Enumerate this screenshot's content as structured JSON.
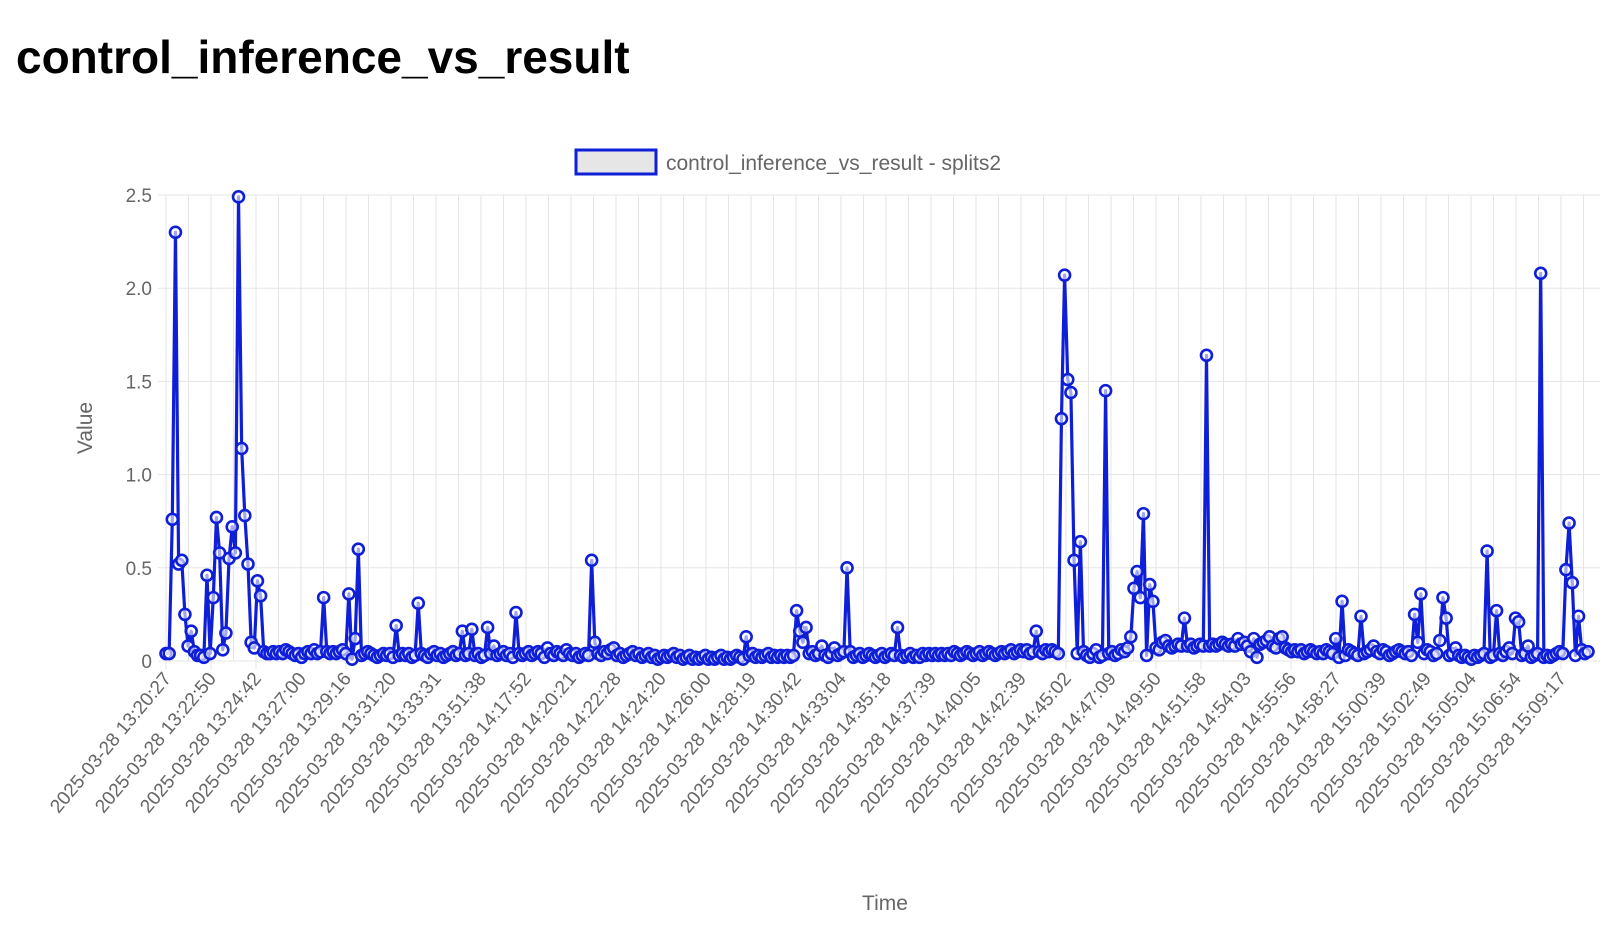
{
  "page": {
    "title": "control_inference_vs_result"
  },
  "colors": {
    "series": "#0f1fd8",
    "legend_fill": "#e6e6e6",
    "grid": "#e5e5e5",
    "text": "#666666"
  },
  "chart_data": {
    "type": "line",
    "xlabel": "Time",
    "ylabel": "Value",
    "ylim": [
      0,
      2.5
    ],
    "yticks": [
      "0",
      "0.5",
      "1.0",
      "1.5",
      "2.0",
      "2.5"
    ],
    "xticks": [
      "2025-03-28 13:20:27",
      "2025-03-28 13:22:50",
      "2025-03-28 13:24:42",
      "2025-03-28 13:27:00",
      "2025-03-28 13:29:16",
      "2025-03-28 13:31:20",
      "2025-03-28 13:33:31",
      "2025-03-28 13:51:38",
      "2025-03-28 14:17:52",
      "2025-03-28 14:20:21",
      "2025-03-28 14:22:28",
      "2025-03-28 14:24:20",
      "2025-03-28 14:26:00",
      "2025-03-28 14:28:19",
      "2025-03-28 14:30:42",
      "2025-03-28 14:33:04",
      "2025-03-28 14:35:18",
      "2025-03-28 14:37:39",
      "2025-03-28 14:40:05",
      "2025-03-28 14:42:39",
      "2025-03-28 14:45:02",
      "2025-03-28 14:47:09",
      "2025-03-28 14:49:50",
      "2025-03-28 14:51:58",
      "2025-03-28 14:54:03",
      "2025-03-28 14:55:56",
      "2025-03-28 14:58:27",
      "2025-03-28 15:00:39",
      "2025-03-28 15:02:49",
      "2025-03-28 15:05:04",
      "2025-03-28 15:06:54",
      "2025-03-28 15:09:17"
    ],
    "grid": true,
    "legend_position": "top",
    "series": [
      {
        "name": "control_inference_vs_result - splits2",
        "values": [
          0.04,
          0.04,
          0.76,
          2.3,
          0.52,
          0.54,
          0.25,
          0.08,
          0.16,
          0.05,
          0.03,
          0.03,
          0.02,
          0.46,
          0.04,
          0.34,
          0.77,
          0.58,
          0.06,
          0.15,
          0.55,
          0.72,
          0.58,
          2.49,
          1.14,
          0.78,
          0.52,
          0.1,
          0.07,
          0.43,
          0.35,
          0.05,
          0.04,
          0.04,
          0.05,
          0.04,
          0.05,
          0.04,
          0.06,
          0.05,
          0.04,
          0.03,
          0.04,
          0.02,
          0.04,
          0.05,
          0.04,
          0.06,
          0.04,
          0.05,
          0.34,
          0.05,
          0.04,
          0.05,
          0.04,
          0.05,
          0.06,
          0.04,
          0.36,
          0.01,
          0.12,
          0.6,
          0.03,
          0.04,
          0.05,
          0.04,
          0.03,
          0.02,
          0.03,
          0.04,
          0.03,
          0.04,
          0.02,
          0.19,
          0.03,
          0.04,
          0.03,
          0.04,
          0.02,
          0.03,
          0.31,
          0.04,
          0.03,
          0.02,
          0.04,
          0.05,
          0.03,
          0.04,
          0.02,
          0.03,
          0.04,
          0.05,
          0.03,
          0.04,
          0.16,
          0.03,
          0.04,
          0.17,
          0.03,
          0.04,
          0.02,
          0.03,
          0.18,
          0.04,
          0.08,
          0.03,
          0.04,
          0.05,
          0.03,
          0.04,
          0.02,
          0.26,
          0.04,
          0.03,
          0.04,
          0.05,
          0.03,
          0.04,
          0.05,
          0.04,
          0.02,
          0.07,
          0.04,
          0.03,
          0.05,
          0.04,
          0.03,
          0.06,
          0.04,
          0.03,
          0.04,
          0.02,
          0.03,
          0.04,
          0.03,
          0.54,
          0.1,
          0.04,
          0.03,
          0.05,
          0.04,
          0.06,
          0.07,
          0.03,
          0.04,
          0.02,
          0.03,
          0.04,
          0.05,
          0.03,
          0.04,
          0.02,
          0.03,
          0.04,
          0.02,
          0.03,
          0.01,
          0.02,
          0.03,
          0.02,
          0.03,
          0.04,
          0.02,
          0.03,
          0.01,
          0.02,
          0.03,
          0.01,
          0.02,
          0.01,
          0.02,
          0.03,
          0.01,
          0.02,
          0.01,
          0.02,
          0.03,
          0.01,
          0.02,
          0.01,
          0.02,
          0.03,
          0.02,
          0.01,
          0.13,
          0.03,
          0.04,
          0.02,
          0.03,
          0.02,
          0.03,
          0.04,
          0.02,
          0.03,
          0.02,
          0.03,
          0.02,
          0.03,
          0.02,
          0.03,
          0.27,
          0.16,
          0.1,
          0.18,
          0.04,
          0.05,
          0.03,
          0.04,
          0.08,
          0.03,
          0.02,
          0.04,
          0.07,
          0.03,
          0.04,
          0.05,
          0.5,
          0.05,
          0.02,
          0.03,
          0.04,
          0.02,
          0.03,
          0.04,
          0.03,
          0.02,
          0.03,
          0.04,
          0.02,
          0.03,
          0.04,
          0.03,
          0.18,
          0.03,
          0.02,
          0.03,
          0.04,
          0.02,
          0.03,
          0.02,
          0.04,
          0.03,
          0.04,
          0.03,
          0.04,
          0.03,
          0.04,
          0.03,
          0.04,
          0.03,
          0.05,
          0.04,
          0.03,
          0.04,
          0.05,
          0.04,
          0.03,
          0.04,
          0.05,
          0.03,
          0.04,
          0.05,
          0.04,
          0.03,
          0.04,
          0.05,
          0.04,
          0.05,
          0.06,
          0.04,
          0.05,
          0.06,
          0.05,
          0.06,
          0.04,
          0.05,
          0.16,
          0.05,
          0.04,
          0.06,
          0.05,
          0.06,
          0.05,
          0.04,
          1.3,
          2.07,
          1.51,
          1.44,
          0.54,
          0.04,
          0.64,
          0.05,
          0.03,
          0.02,
          0.04,
          0.06,
          0.02,
          0.03,
          1.45,
          0.04,
          0.05,
          0.03,
          0.04,
          0.06,
          0.05,
          0.07,
          0.13,
          0.39,
          0.48,
          0.34,
          0.79,
          0.03,
          0.41,
          0.32,
          0.07,
          0.06,
          0.1,
          0.11,
          0.08,
          0.07,
          0.08,
          0.09,
          0.08,
          0.23,
          0.08,
          0.09,
          0.07,
          0.08,
          0.09,
          0.08,
          1.64,
          0.08,
          0.09,
          0.08,
          0.09,
          0.1,
          0.09,
          0.08,
          0.09,
          0.08,
          0.12,
          0.09,
          0.1,
          0.08,
          0.05,
          0.12,
          0.02,
          0.09,
          0.1,
          0.11,
          0.13,
          0.08,
          0.07,
          0.12,
          0.13,
          0.07,
          0.06,
          0.05,
          0.06,
          0.05,
          0.06,
          0.04,
          0.05,
          0.06,
          0.05,
          0.04,
          0.05,
          0.04,
          0.06,
          0.05,
          0.04,
          0.12,
          0.02,
          0.32,
          0.03,
          0.06,
          0.05,
          0.04,
          0.03,
          0.24,
          0.04,
          0.05,
          0.06,
          0.08,
          0.05,
          0.04,
          0.06,
          0.05,
          0.03,
          0.04,
          0.05,
          0.06,
          0.05,
          0.04,
          0.05,
          0.03,
          0.25,
          0.1,
          0.36,
          0.04,
          0.06,
          0.05,
          0.03,
          0.04,
          0.11,
          0.34,
          0.23,
          0.03,
          0.04,
          0.07,
          0.03,
          0.02,
          0.03,
          0.02,
          0.01,
          0.03,
          0.02,
          0.03,
          0.04,
          0.59,
          0.02,
          0.03,
          0.27,
          0.04,
          0.03,
          0.05,
          0.07,
          0.04,
          0.23,
          0.21,
          0.03,
          0.04,
          0.08,
          0.02,
          0.03,
          0.04,
          2.08,
          0.02,
          0.03,
          0.02,
          0.03,
          0.04,
          0.05,
          0.04,
          0.49,
          0.74,
          0.42,
          0.03,
          0.24,
          0.06,
          0.04,
          0.05
        ]
      }
    ]
  }
}
